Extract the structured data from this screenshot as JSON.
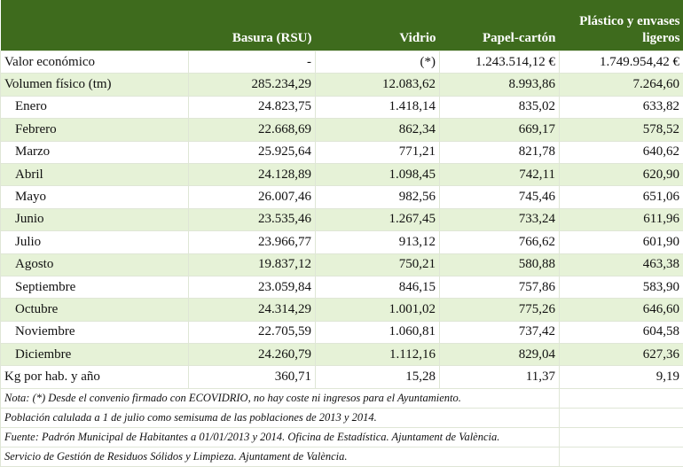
{
  "header": {
    "columns": [
      "",
      "Basura (RSU)",
      "Vidrio",
      "Papel-cartón",
      "Plástico y envases ligeros"
    ]
  },
  "table": {
    "rows": [
      [
        "Valor económico",
        "-",
        "(*)",
        "1.243.514,12 €",
        "1.749.954,42 €"
      ],
      [
        "Volumen físico (tm)",
        "285.234,29",
        "12.083,62",
        "8.993,86",
        "7.264,60"
      ],
      [
        "Enero",
        "24.823,75",
        "1.418,14",
        "835,02",
        "633,82"
      ],
      [
        "Febrero",
        "22.668,69",
        "862,34",
        "669,17",
        "578,52"
      ],
      [
        "Marzo",
        "25.925,64",
        "771,21",
        "821,78",
        "640,62"
      ],
      [
        "Abril",
        "24.128,89",
        "1.098,45",
        "742,11",
        "620,90"
      ],
      [
        "Mayo",
        "26.007,46",
        "982,56",
        "745,46",
        "651,06"
      ],
      [
        "Junio",
        "23.535,46",
        "1.267,45",
        "733,24",
        "611,96"
      ],
      [
        "Julio",
        "23.966,77",
        "913,12",
        "766,62",
        "601,90"
      ],
      [
        "Agosto",
        "19.837,12",
        "750,21",
        "580,88",
        "463,38"
      ],
      [
        "Septiembre",
        "23.059,84",
        "846,15",
        "757,86",
        "583,90"
      ],
      [
        "Octubre",
        "24.314,29",
        "1.001,02",
        "775,26",
        "646,60"
      ],
      [
        "Noviembre",
        "22.705,59",
        "1.060,81",
        "737,42",
        "604,58"
      ],
      [
        "Diciembre",
        "24.260,79",
        "1.112,16",
        "829,04",
        "627,36"
      ],
      [
        "Kg por hab. y año",
        "360,71",
        "15,28",
        "11,37",
        "9,19"
      ]
    ]
  },
  "notes": [
    "Nota: (*) Desde el convenio firmado con ECOVIDRIO, no hay coste ni ingresos para el Ayuntamiento.",
    "Población calulada a 1 de julio como semisuma de las poblaciones de 2013 y 2014.",
    "Fuente: Padrón Municipal de Habitantes a 01/01/2013 y 2014. Oficina de Estadística. Ajuntament de València.",
    "Servicio de Gestión de Residuos Sólidos y Limpieza. Ajuntament de València."
  ]
}
